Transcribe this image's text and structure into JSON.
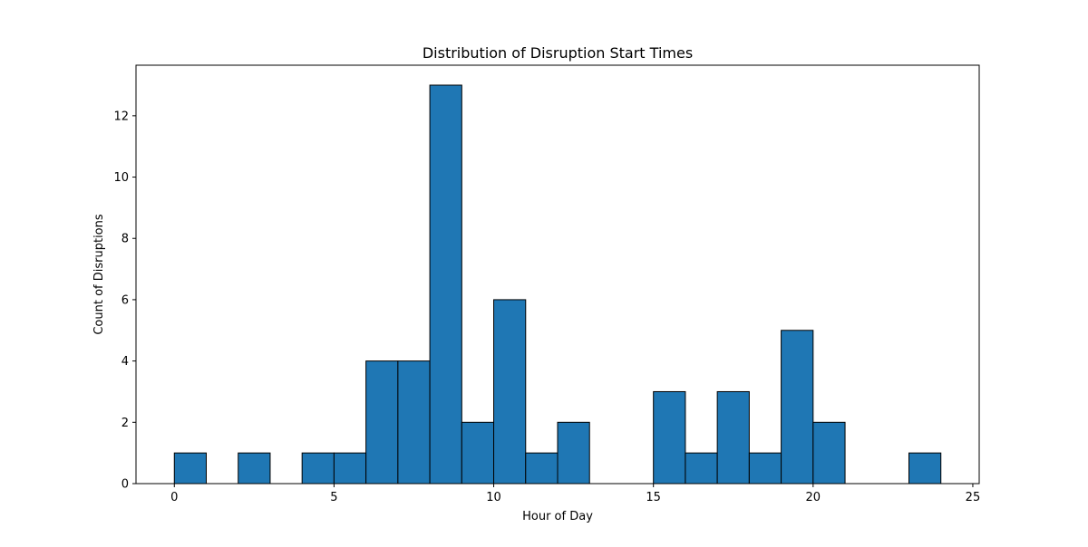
{
  "chart_data": {
    "type": "bar",
    "title": "Distribution of Disruption Start Times",
    "xlabel": "Hour of Day",
    "ylabel": "Count of Disruptions",
    "xlim": [
      -1.2,
      25.2
    ],
    "ylim": [
      0,
      13.65
    ],
    "x_ticks": [
      0,
      5,
      10,
      15,
      20,
      25
    ],
    "y_ticks": [
      0,
      2,
      4,
      6,
      8,
      10,
      12
    ],
    "bins": [
      {
        "start": 0,
        "end": 1,
        "count": 1
      },
      {
        "start": 1,
        "end": 2,
        "count": 0
      },
      {
        "start": 2,
        "end": 3,
        "count": 1
      },
      {
        "start": 3,
        "end": 4,
        "count": 0
      },
      {
        "start": 4,
        "end": 5,
        "count": 1
      },
      {
        "start": 5,
        "end": 6,
        "count": 1
      },
      {
        "start": 6,
        "end": 7,
        "count": 4
      },
      {
        "start": 7,
        "end": 8,
        "count": 4
      },
      {
        "start": 8,
        "end": 9,
        "count": 13
      },
      {
        "start": 9,
        "end": 10,
        "count": 2
      },
      {
        "start": 10,
        "end": 11,
        "count": 6
      },
      {
        "start": 11,
        "end": 12,
        "count": 1
      },
      {
        "start": 12,
        "end": 13,
        "count": 2
      },
      {
        "start": 13,
        "end": 14,
        "count": 0
      },
      {
        "start": 14,
        "end": 15,
        "count": 0
      },
      {
        "start": 15,
        "end": 16,
        "count": 3
      },
      {
        "start": 16,
        "end": 17,
        "count": 1
      },
      {
        "start": 17,
        "end": 18,
        "count": 3
      },
      {
        "start": 18,
        "end": 19,
        "count": 1
      },
      {
        "start": 19,
        "end": 20,
        "count": 5
      },
      {
        "start": 20,
        "end": 21,
        "count": 2
      },
      {
        "start": 21,
        "end": 22,
        "count": 0
      },
      {
        "start": 22,
        "end": 23,
        "count": 0
      },
      {
        "start": 23,
        "end": 24,
        "count": 1
      }
    ],
    "bar_color": "#1f77b4",
    "edge_color": "#000000",
    "grid": false,
    "legend": "none"
  }
}
